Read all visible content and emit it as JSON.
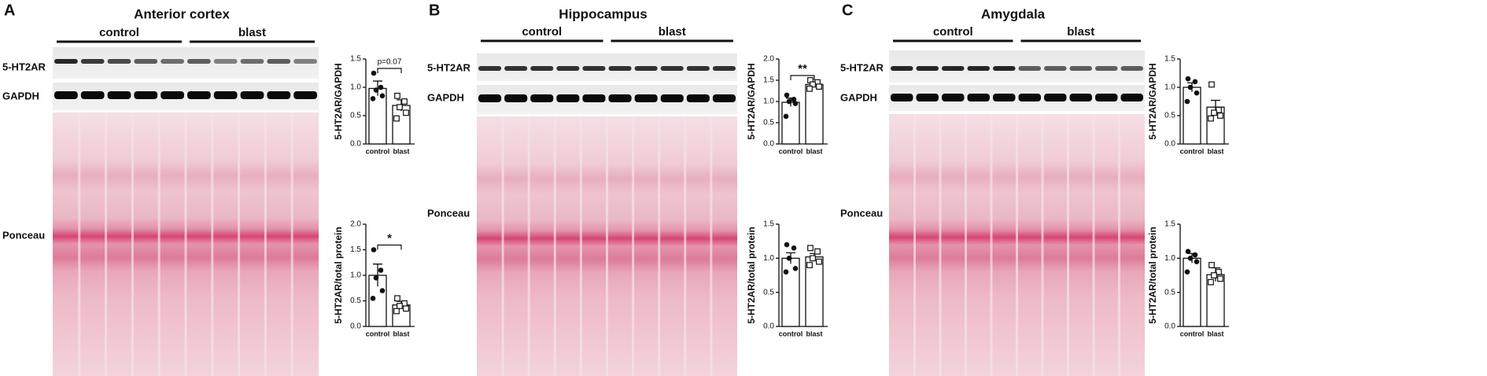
{
  "panels": [
    {
      "letter": "A",
      "title": "Anterior cortex",
      "groups": [
        "control",
        "blast"
      ],
      "rows": [
        "5-HT2AR",
        "GAPDH",
        "Ponceau"
      ]
    },
    {
      "letter": "B",
      "title": "Hippocampus",
      "groups": [
        "control",
        "blast"
      ],
      "rows": [
        "5-HT2AR",
        "GAPDH",
        "Ponceau"
      ]
    },
    {
      "letter": "C",
      "title": "Amygdala",
      "groups": [
        "control",
        "blast"
      ],
      "rows": [
        "5-HT2AR",
        "GAPDH",
        "Ponceau"
      ]
    }
  ],
  "chart_data": [
    {
      "type": "bar",
      "ylabel": "5-HT2AR/GAPDH",
      "categories": [
        "control",
        "blast"
      ],
      "values": [
        0.98,
        0.68
      ],
      "errors": [
        0.13,
        0.1
      ],
      "points": [
        [
          1.25,
          1.0,
          0.95,
          0.85,
          0.8
        ],
        [
          0.85,
          0.75,
          0.65,
          0.55,
          0.45
        ]
      ],
      "annotation": "p=0.07",
      "ylim": [
        0,
        1.5
      ],
      "yticks": [
        {
          "value": 0,
          "label": "0.0"
        },
        {
          "value": 0.5,
          "label": "0.5"
        },
        {
          "value": 1,
          "label": "1.0"
        },
        {
          "value": 1.5,
          "label": "1.5"
        }
      ]
    },
    {
      "type": "bar",
      "ylabel": "5-HT2AR/total protein",
      "categories": [
        "control",
        "blast"
      ],
      "values": [
        1.0,
        0.42
      ],
      "errors": [
        0.22,
        0.07
      ],
      "points": [
        [
          1.5,
          1.1,
          0.95,
          0.7,
          0.55
        ],
        [
          0.55,
          0.45,
          0.4,
          0.35,
          0.3
        ]
      ],
      "annotation": "*",
      "ylim": [
        0,
        2
      ],
      "yticks": [
        {
          "value": 0,
          "label": "0.0"
        },
        {
          "value": 0.5,
          "label": "0.5"
        },
        {
          "value": 1,
          "label": "1.0"
        },
        {
          "value": 1.5,
          "label": "1.5"
        },
        {
          "value": 2,
          "label": "2.0"
        }
      ]
    },
    {
      "type": "bar",
      "ylabel": "5-HT2AR/GAPDH",
      "categories": [
        "control",
        "blast"
      ],
      "values": [
        0.98,
        1.4
      ],
      "errors": [
        0.1,
        0.05
      ],
      "points": [
        [
          1.15,
          1.05,
          1.0,
          0.95,
          0.65
        ],
        [
          1.5,
          1.45,
          1.4,
          1.35,
          1.3
        ]
      ],
      "annotation": "**",
      "ylim": [
        0,
        2
      ],
      "yticks": [
        {
          "value": 0,
          "label": "0.0"
        },
        {
          "value": 0.5,
          "label": "0.5"
        },
        {
          "value": 1,
          "label": "1.0"
        },
        {
          "value": 1.5,
          "label": "1.5"
        },
        {
          "value": 2,
          "label": "2.0"
        }
      ]
    },
    {
      "type": "bar",
      "ylabel": "5-HT2AR/total protein",
      "categories": [
        "control",
        "blast"
      ],
      "values": [
        1.0,
        1.02
      ],
      "errors": [
        0.08,
        0.05
      ],
      "points": [
        [
          1.2,
          1.15,
          1.0,
          0.85,
          0.8
        ],
        [
          1.15,
          1.1,
          1.0,
          0.95,
          0.9
        ]
      ],
      "ylim": [
        0,
        1.5
      ],
      "yticks": [
        {
          "value": 0,
          "label": "0.0"
        },
        {
          "value": 0.5,
          "label": "0.5"
        },
        {
          "value": 1,
          "label": "1.0"
        },
        {
          "value": 1.5,
          "label": "1.5"
        }
      ]
    },
    {
      "type": "bar",
      "ylabel": "5-HT2AR/GAPDH",
      "categories": [
        "control",
        "blast"
      ],
      "values": [
        1.0,
        0.65
      ],
      "errors": [
        0.08,
        0.12
      ],
      "points": [
        [
          1.15,
          1.1,
          1.0,
          0.9,
          0.75
        ],
        [
          1.05,
          0.6,
          0.55,
          0.5,
          0.45
        ]
      ],
      "ylim": [
        0,
        1.5
      ],
      "yticks": [
        {
          "value": 0,
          "label": "0.0"
        },
        {
          "value": 0.5,
          "label": "0.5"
        },
        {
          "value": 1,
          "label": "1.0"
        },
        {
          "value": 1.5,
          "label": "1.5"
        }
      ]
    },
    {
      "type": "bar",
      "ylabel": "5-HT2AR/total protein",
      "categories": [
        "control",
        "blast"
      ],
      "values": [
        1.0,
        0.76
      ],
      "errors": [
        0.07,
        0.1
      ],
      "points": [
        [
          1.1,
          1.05,
          1.0,
          0.95,
          0.8
        ],
        [
          0.9,
          0.8,
          0.75,
          0.7,
          0.65
        ]
      ],
      "ylim": [
        0,
        1.5
      ],
      "yticks": [
        {
          "value": 0,
          "label": "0.0"
        },
        {
          "value": 0.5,
          "label": "0.5"
        },
        {
          "value": 1,
          "label": "1.0"
        },
        {
          "value": 1.5,
          "label": "1.5"
        }
      ]
    }
  ]
}
